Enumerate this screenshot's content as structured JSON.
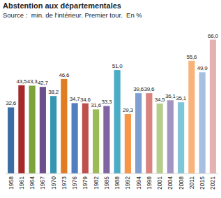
{
  "chart_data": {
    "type": "bar",
    "title": "Abstention aux départementales",
    "subtitle": "Source :  min. de l'intérieur. Premier tour.  En %",
    "categories": [
      "1958",
      "1961",
      "1964",
      "1967",
      "1970",
      "1973",
      "1976",
      "1979",
      "1982",
      "1985",
      "1988",
      "1992",
      "1994",
      "1998",
      "2001",
      "2004",
      "2008",
      "2011",
      "2015",
      "2021"
    ],
    "values": [
      32.6,
      43.5,
      43.3,
      42.7,
      38.2,
      46.6,
      34.7,
      34.6,
      31.6,
      33.3,
      51.0,
      29.3,
      39.6,
      39.6,
      34.5,
      36.1,
      35.1,
      55.6,
      49.9,
      66.0
    ],
    "value_labels": [
      "32,6",
      "43,5",
      "43,3",
      "42,7",
      "38,2",
      "46,6",
      "34,7",
      "34,6",
      "31,6",
      "33,3",
      "51,0",
      "29,3",
      "39,6",
      "39,6",
      "34,5",
      "36,1",
      "35,1",
      "55,6",
      "49,9",
      "66,0"
    ],
    "colors": [
      "#3a6ea5",
      "#a5292a",
      "#7da33c",
      "#6c4f8c",
      "#3496b0",
      "#e07c22",
      "#4f7fbf",
      "#c0504d",
      "#9bbb59",
      "#8064a2",
      "#4bacc6",
      "#f79646",
      "#7e9fd0",
      "#d9827e",
      "#b5cf8a",
      "#a394c4",
      "#7fc5d8",
      "#f9b37a",
      "#a8bfe0",
      "#e3b3b1"
    ],
    "ylim": [
      0,
      70
    ],
    "data_labels": true,
    "tick_labels": "x",
    "grid": false
  }
}
